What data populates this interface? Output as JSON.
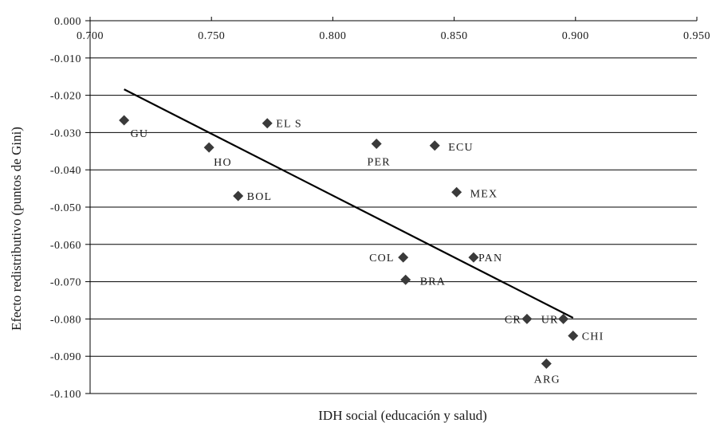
{
  "chart_data": {
    "type": "scatter",
    "xlabel": "IDH social (educación y salud)",
    "ylabel": "Efecto redistributivo (puntos de Gini)",
    "xlim": [
      0.7,
      0.95
    ],
    "ylim": [
      -0.1,
      0.0
    ],
    "x_ticks": [
      "0.700",
      "0.750",
      "0.800",
      "0.850",
      "0.900",
      "0.950"
    ],
    "y_ticks": [
      "0.000",
      "-0.010",
      "-0.020",
      "-0.030",
      "-0.040",
      "-0.050",
      "-0.060",
      "-0.070",
      "-0.080",
      "-0.090",
      "-0.100"
    ],
    "grid": "horizontal",
    "points": [
      {
        "label": "GU",
        "x": 0.714,
        "y": -0.0267
      },
      {
        "label": "HO",
        "x": 0.749,
        "y": -0.034
      },
      {
        "label": "BOL",
        "x": 0.761,
        "y": -0.047
      },
      {
        "label": "EL S",
        "x": 0.773,
        "y": -0.0275
      },
      {
        "label": "PER",
        "x": 0.818,
        "y": -0.033
      },
      {
        "label": "ECU",
        "x": 0.842,
        "y": -0.0335
      },
      {
        "label": "MEX",
        "x": 0.851,
        "y": -0.046
      },
      {
        "label": "COL",
        "x": 0.829,
        "y": -0.0635
      },
      {
        "label": "PAN",
        "x": 0.858,
        "y": -0.0635
      },
      {
        "label": "BRA",
        "x": 0.83,
        "y": -0.0695
      },
      {
        "label": "CR",
        "x": 0.88,
        "y": -0.08
      },
      {
        "label": "UR",
        "x": 0.895,
        "y": -0.08
      },
      {
        "label": "CHI",
        "x": 0.899,
        "y": -0.0845
      },
      {
        "label": "ARG",
        "x": 0.888,
        "y": -0.092
      }
    ],
    "trendline": {
      "x": [
        0.714,
        0.899
      ],
      "y": [
        -0.0184,
        -0.0797
      ]
    }
  }
}
